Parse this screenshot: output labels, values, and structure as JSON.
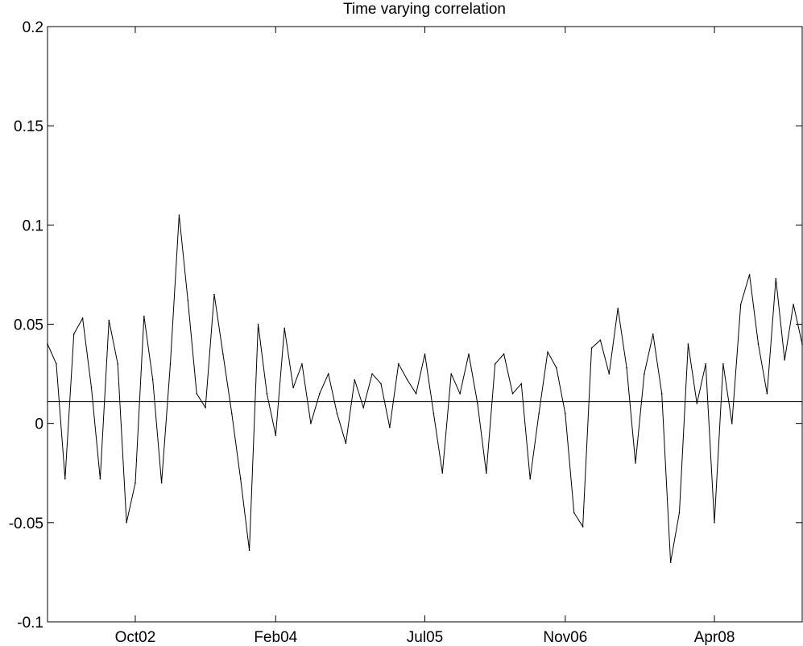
{
  "chart_data": {
    "type": "line",
    "title": "Time varying correlation",
    "xlabel": "",
    "ylabel": "",
    "ylim": [
      -0.1,
      0.2
    ],
    "yticks": [
      {
        "value": -0.1,
        "label": "-0.1"
      },
      {
        "value": -0.05,
        "label": "-0.05"
      },
      {
        "value": 0,
        "label": "0"
      },
      {
        "value": 0.05,
        "label": "0.05"
      },
      {
        "value": 0.1,
        "label": "0.1"
      },
      {
        "value": 0.15,
        "label": "0.15"
      },
      {
        "value": 0.2,
        "label": "0.2"
      }
    ],
    "xlim": [
      "2001-12",
      "2009-02"
    ],
    "xticks": [
      {
        "value": "2002-10",
        "label": "Oct02"
      },
      {
        "value": "2004-02",
        "label": "Feb04"
      },
      {
        "value": "2005-07",
        "label": "Jul05"
      },
      {
        "value": "2006-11",
        "label": "Nov06"
      },
      {
        "value": "2008-04",
        "label": "Apr08"
      }
    ],
    "grid": false,
    "reference_line": {
      "y": 0.011
    },
    "series": [
      {
        "x": [
          "2001-12",
          "2002-01",
          "2002-02",
          "2002-03",
          "2002-04",
          "2002-05",
          "2002-06",
          "2002-07",
          "2002-08",
          "2002-09",
          "2002-10",
          "2002-11",
          "2002-12",
          "2003-01",
          "2003-02",
          "2003-03",
          "2003-04",
          "2003-05",
          "2003-06",
          "2003-07",
          "2003-08",
          "2003-09",
          "2003-10",
          "2003-11",
          "2003-12",
          "2004-01",
          "2004-02",
          "2004-03",
          "2004-04",
          "2004-05",
          "2004-06",
          "2004-07",
          "2004-08",
          "2004-09",
          "2004-10",
          "2004-11",
          "2004-12",
          "2005-01",
          "2005-02",
          "2005-03",
          "2005-04",
          "2005-05",
          "2005-06",
          "2005-07",
          "2005-08",
          "2005-09",
          "2005-10",
          "2005-11",
          "2005-12",
          "2006-01",
          "2006-02",
          "2006-03",
          "2006-04",
          "2006-05",
          "2006-06",
          "2006-07",
          "2006-08",
          "2006-09",
          "2006-10",
          "2006-11",
          "2006-12",
          "2007-01",
          "2007-02",
          "2007-03",
          "2007-04",
          "2007-05",
          "2007-06",
          "2007-07",
          "2007-08",
          "2007-09",
          "2007-10",
          "2007-11",
          "2007-12",
          "2008-01",
          "2008-02",
          "2008-03",
          "2008-04",
          "2008-05",
          "2008-06",
          "2008-07",
          "2008-08",
          "2008-09",
          "2008-10",
          "2008-11",
          "2008-12",
          "2009-01",
          "2009-02"
        ],
        "values": [
          0.04,
          0.03,
          -0.028,
          0.045,
          0.053,
          0.018,
          -0.028,
          0.052,
          0.03,
          -0.05,
          -0.03,
          0.054,
          0.022,
          -0.03,
          0.03,
          0.105,
          0.062,
          0.015,
          0.008,
          0.065,
          0.035,
          0.005,
          -0.028,
          -0.064,
          0.05,
          0.015,
          -0.006,
          0.048,
          0.018,
          0.03,
          0.0,
          0.015,
          0.025,
          0.005,
          -0.01,
          0.022,
          0.008,
          0.025,
          0.02,
          -0.002,
          0.03,
          0.022,
          0.015,
          0.035,
          0.005,
          -0.025,
          0.025,
          0.015,
          0.035,
          0.01,
          -0.025,
          0.03,
          0.035,
          0.015,
          0.02,
          -0.028,
          0.005,
          0.036,
          0.028,
          0.005,
          -0.045,
          -0.052,
          0.038,
          0.042,
          0.025,
          0.058,
          0.028,
          -0.02,
          0.025,
          0.045,
          0.015,
          -0.07,
          -0.045,
          0.04,
          0.01,
          0.03,
          -0.05,
          0.03,
          0.0,
          0.06,
          0.075,
          0.04,
          0.015,
          0.073,
          0.032,
          0.06,
          0.04
        ]
      }
    ]
  }
}
